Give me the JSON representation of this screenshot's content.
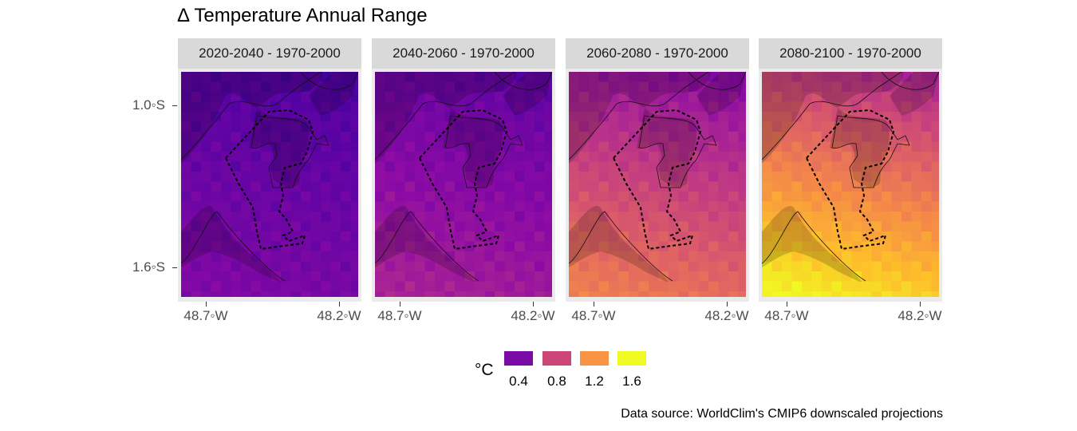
{
  "title": "Δ Temperature Annual Range",
  "panels": [
    {
      "label": "2020-2040 - 1970-2000",
      "level": 0.28
    },
    {
      "label": "2040-2060 - 1970-2000",
      "level": 0.45
    },
    {
      "label": "2060-2080 - 1970-2000",
      "level": 0.9
    },
    {
      "label": "2080-2100 - 1970-2000",
      "level": 1.35
    }
  ],
  "axes": {
    "y_ticks": [
      "1.0◦S",
      "1.6◦S"
    ],
    "x_ticks": [
      "48.7◦W",
      "48.2◦W"
    ]
  },
  "legend": {
    "title": "°C",
    "items": [
      {
        "label": "0.4",
        "color": "#7a0ba7"
      },
      {
        "label": "0.8",
        "color": "#cc4678"
      },
      {
        "label": "1.2",
        "color": "#f89441"
      },
      {
        "label": "1.6",
        "color": "#f0f921"
      }
    ]
  },
  "caption": "Data source: WorldClim's CMIP6 downscaled projections"
}
